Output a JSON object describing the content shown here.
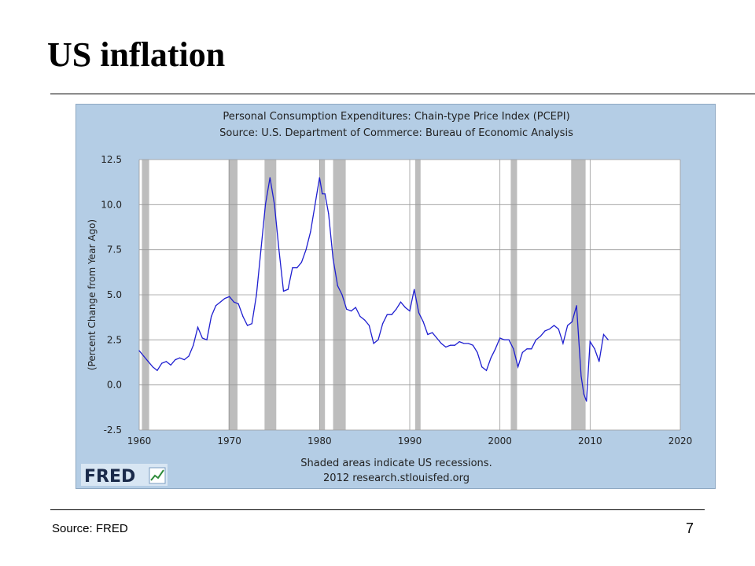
{
  "slide": {
    "title": "US inflation",
    "source": "Source:  FRED",
    "page_number": "7"
  },
  "chart_data": {
    "type": "line",
    "title": "Personal Consumption Expenditures: Chain-type Price Index (PCEPI)",
    "subtitle": "Source: U.S. Department of Commerce: Bureau of Economic Analysis",
    "xlabel": "",
    "ylabel": "(Percent Change from Year Ago)",
    "xlim": [
      1960,
      2020
    ],
    "ylim": [
      -2.5,
      12.5
    ],
    "x_ticks": [
      "1960",
      "1970",
      "1980",
      "1990",
      "2000",
      "2010",
      "2020"
    ],
    "y_ticks": [
      "12.5",
      "10.0",
      "7.5",
      "5.0",
      "2.5",
      "0.0",
      "-2.5"
    ],
    "grid": true,
    "footnote": "Shaded areas indicate US recessions.",
    "credit": "2012 research.stlouisfed.org",
    "logo": "FRED",
    "line_color": "#1f1fd0",
    "recession_color": "#bdbdbd",
    "recessions": [
      [
        1960.3,
        1961.1
      ],
      [
        1969.9,
        1970.9
      ],
      [
        1973.9,
        1975.2
      ],
      [
        1980.0,
        1980.6
      ],
      [
        1981.5,
        1982.9
      ],
      [
        1990.6,
        1991.2
      ],
      [
        2001.2,
        2001.9
      ],
      [
        2007.9,
        2009.5
      ]
    ],
    "x": [
      1960.0,
      1960.5,
      1961.0,
      1961.5,
      1962.0,
      1962.5,
      1963.0,
      1963.5,
      1964.0,
      1964.5,
      1965.0,
      1965.5,
      1966.0,
      1966.5,
      1967.0,
      1967.5,
      1968.0,
      1968.5,
      1969.0,
      1969.5,
      1970.0,
      1970.5,
      1971.0,
      1971.5,
      1972.0,
      1972.5,
      1973.0,
      1973.5,
      1974.0,
      1974.5,
      1975.0,
      1975.5,
      1976.0,
      1976.5,
      1977.0,
      1977.5,
      1978.0,
      1978.5,
      1979.0,
      1979.5,
      1980.0,
      1980.3,
      1980.6,
      1981.0,
      1981.5,
      1982.0,
      1982.5,
      1983.0,
      1983.5,
      1984.0,
      1984.5,
      1985.0,
      1985.5,
      1986.0,
      1986.5,
      1987.0,
      1987.5,
      1988.0,
      1988.5,
      1989.0,
      1989.5,
      1990.0,
      1990.5,
      1991.0,
      1991.5,
      1992.0,
      1992.5,
      1993.0,
      1993.5,
      1994.0,
      1994.5,
      1995.0,
      1995.5,
      1996.0,
      1996.5,
      1997.0,
      1997.5,
      1998.0,
      1998.5,
      1999.0,
      1999.5,
      2000.0,
      2000.5,
      2001.0,
      2001.5,
      2002.0,
      2002.5,
      2003.0,
      2003.5,
      2004.0,
      2004.5,
      2005.0,
      2005.5,
      2006.0,
      2006.5,
      2007.0,
      2007.5,
      2008.0,
      2008.5,
      2009.0,
      2009.3,
      2009.6,
      2010.0,
      2010.5,
      2011.0,
      2011.5,
      2012.0
    ],
    "values": [
      1.9,
      1.6,
      1.3,
      1.0,
      0.8,
      1.2,
      1.3,
      1.1,
      1.4,
      1.5,
      1.4,
      1.6,
      2.2,
      3.2,
      2.6,
      2.5,
      3.8,
      4.4,
      4.6,
      4.8,
      4.9,
      4.6,
      4.5,
      3.8,
      3.3,
      3.4,
      5.0,
      7.5,
      10.0,
      11.5,
      10.0,
      7.5,
      5.2,
      5.3,
      6.5,
      6.5,
      6.8,
      7.5,
      8.5,
      10.0,
      11.5,
      10.6,
      10.6,
      9.5,
      7.0,
      5.5,
      5.0,
      4.2,
      4.1,
      4.3,
      3.8,
      3.6,
      3.3,
      2.3,
      2.5,
      3.4,
      3.9,
      3.9,
      4.2,
      4.6,
      4.3,
      4.1,
      5.3,
      4.0,
      3.5,
      2.8,
      2.9,
      2.6,
      2.3,
      2.1,
      2.2,
      2.2,
      2.4,
      2.3,
      2.3,
      2.2,
      1.8,
      1.0,
      0.8,
      1.5,
      2.0,
      2.6,
      2.5,
      2.5,
      2.0,
      1.0,
      1.8,
      2.0,
      2.0,
      2.5,
      2.7,
      3.0,
      3.1,
      3.3,
      3.1,
      2.3,
      3.3,
      3.5,
      4.4,
      0.5,
      -0.5,
      -0.9,
      2.4,
      2.0,
      1.3,
      2.8,
      2.5
    ]
  }
}
